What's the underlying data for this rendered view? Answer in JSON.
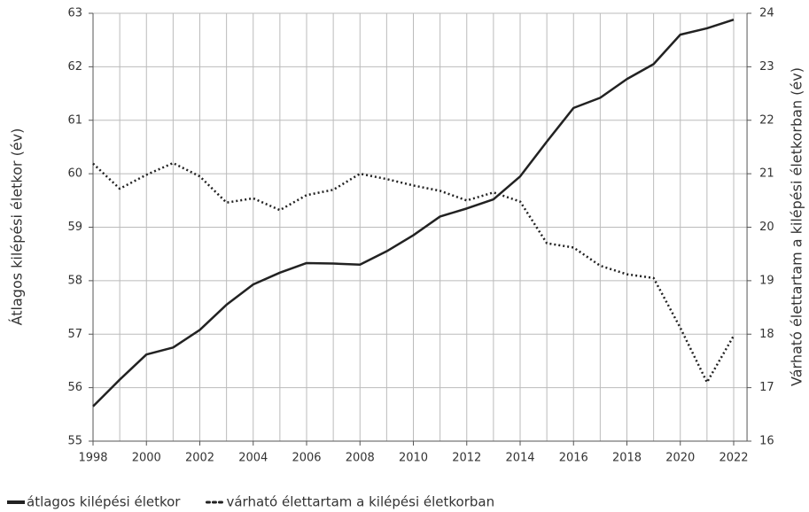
{
  "chart_data": {
    "type": "line",
    "x": [
      1998,
      1999,
      2000,
      2001,
      2002,
      2003,
      2004,
      2005,
      2006,
      2007,
      2008,
      2009,
      2010,
      2011,
      2012,
      2013,
      2014,
      2015,
      2016,
      2017,
      2018,
      2019,
      2020,
      2021,
      2022
    ],
    "xlim": [
      1998,
      2022.5
    ],
    "xticks": [
      1998,
      2000,
      2002,
      2004,
      2006,
      2008,
      2010,
      2012,
      2014,
      2016,
      2018,
      2020,
      2022
    ],
    "xminorticks": [
      1999,
      2001,
      2003,
      2005,
      2007,
      2009,
      2011,
      2013,
      2015,
      2017,
      2019,
      2021
    ],
    "ylabel": "Átlagos kilépési életkor (év)",
    "ylim": [
      55,
      63
    ],
    "yticks": [
      55,
      56,
      57,
      58,
      59,
      60,
      61,
      62,
      63
    ],
    "y2label": "Várható élettartam a kilépési életkorban (év)",
    "y2lim": [
      16,
      24
    ],
    "y2ticks": [
      16,
      17,
      18,
      19,
      20,
      21,
      22,
      23,
      24
    ],
    "grid": true,
    "legend": "bottom-left",
    "series": [
      {
        "name": "átlagos kilépési életkor",
        "color": "#222222",
        "style": "solid",
        "axis": "y",
        "values": [
          55.65,
          56.15,
          56.62,
          56.75,
          57.08,
          57.55,
          57.93,
          58.15,
          58.33,
          58.32,
          58.3,
          58.55,
          58.85,
          59.2,
          59.35,
          59.52,
          59.95,
          60.6,
          61.23,
          61.42,
          61.77,
          62.05,
          62.6,
          62.72,
          62.88
        ]
      },
      {
        "name": "várható élettartam a kilépési életkorban",
        "color": "#222222",
        "style": "dotted",
        "axis": "y2",
        "values": [
          21.19,
          20.72,
          20.98,
          21.2,
          20.95,
          20.46,
          20.54,
          20.32,
          20.6,
          20.7,
          21.0,
          20.9,
          20.78,
          20.68,
          20.5,
          20.65,
          20.48,
          19.7,
          19.62,
          19.28,
          19.12,
          19.05,
          18.12,
          17.1,
          17.97
        ]
      }
    ]
  }
}
